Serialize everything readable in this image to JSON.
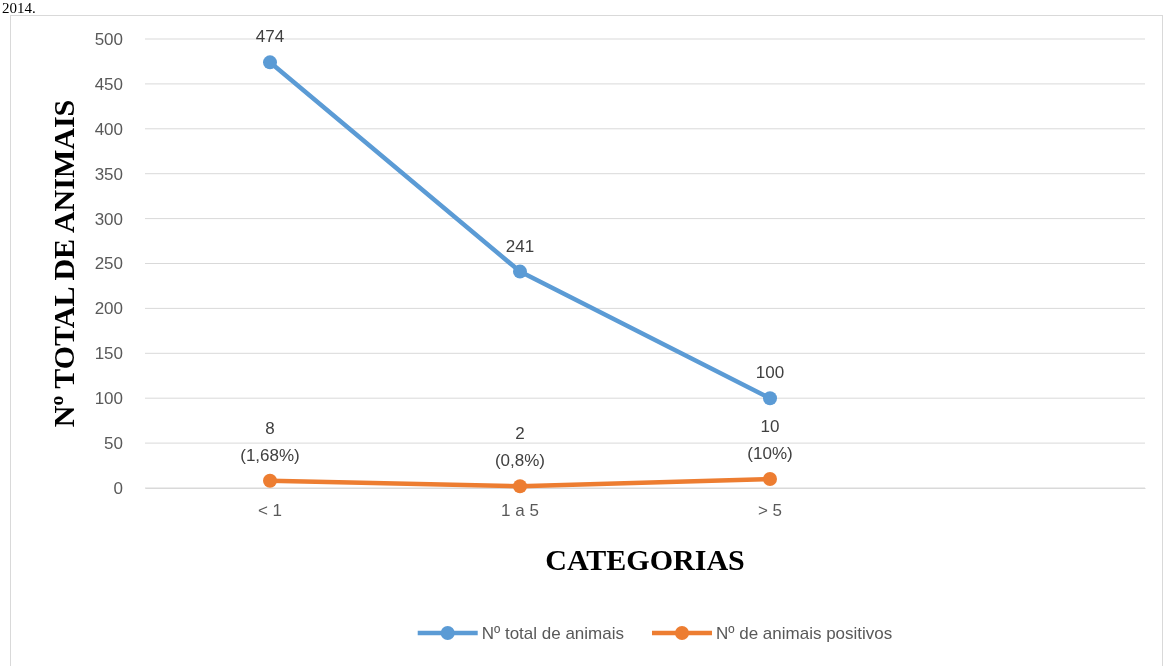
{
  "chart_data": {
    "type": "line",
    "xlabel": "CATEGORIAS",
    "ylabel": "Nº TOTAL DE ANIMAIS",
    "categories": [
      "< 1",
      "1 a 5",
      "> 5",
      null
    ],
    "series": [
      {
        "name": "Nº total de animais",
        "color": "#5b9bd5",
        "values": [
          474,
          241,
          100,
          null
        ],
        "value_labels": [
          "474",
          "241",
          "100",
          null
        ]
      },
      {
        "name": "Nº de animais positivos",
        "color": "#ed7d31",
        "values": [
          8,
          2,
          10,
          null
        ],
        "value_labels": [
          "8\n(1,68%)",
          "2\n(0,8%)",
          "10\n(10%)",
          null
        ]
      }
    ],
    "ylim": [
      0,
      500
    ],
    "yticks": [
      0,
      50,
      100,
      150,
      200,
      250,
      300,
      350,
      400,
      450,
      500
    ],
    "grid": "y",
    "legend": "bottom",
    "marker": "circle",
    "line_style": "solid",
    "annotations": [
      "2014."
    ]
  }
}
